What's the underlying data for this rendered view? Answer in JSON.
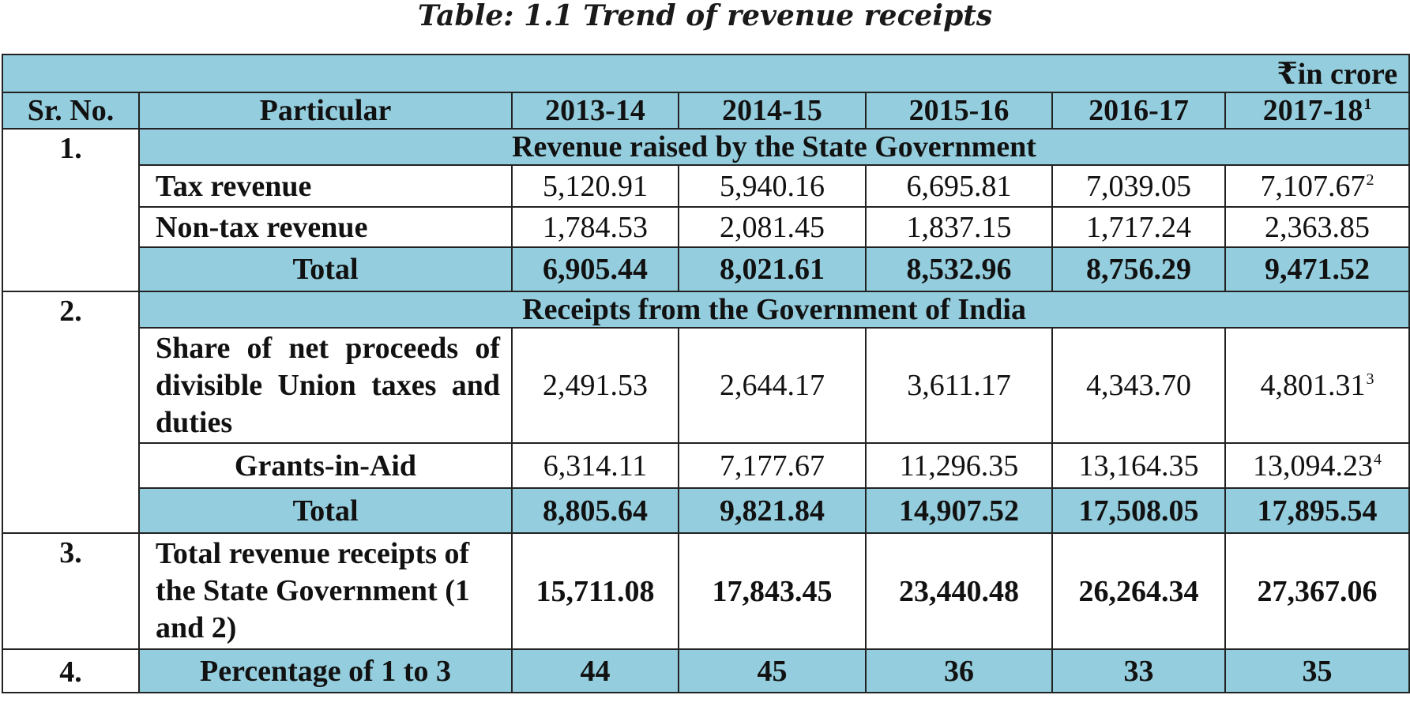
{
  "title": "Table: 1.1 Trend of revenue receipts",
  "unit": "₹in crore",
  "header": {
    "sr_no": "Sr. No.",
    "particular": "Particular",
    "years": [
      "2013-14",
      "2014-15",
      "2015-16",
      "2016-17",
      "2017-18"
    ],
    "last_year_footnote": "1"
  },
  "sections": [
    {
      "sr": "1.",
      "heading": "Revenue raised by the State Government",
      "rows": [
        {
          "label": "Tax revenue",
          "values": [
            "5,120.91",
            "5,940.16",
            "6,695.81",
            "7,039.05",
            "7,107.67"
          ],
          "footnote": "2"
        },
        {
          "label": "Non-tax revenue",
          "values": [
            "1,784.53",
            "2,081.45",
            "1,837.15",
            "1,717.24",
            "2,363.85"
          ],
          "footnote": ""
        }
      ],
      "total": {
        "label": "Total",
        "values": [
          "6,905.44",
          "8,021.61",
          "8,532.96",
          "8,756.29",
          "9,471.52"
        ]
      }
    },
    {
      "sr": "2.",
      "heading": "Receipts from the Government of India",
      "rows": [
        {
          "label": "Share of net proceeds of divisible Union taxes and duties",
          "values": [
            "2,491.53",
            "2,644.17",
            "3,611.17",
            "4,343.70",
            "4,801.31"
          ],
          "footnote": "3"
        },
        {
          "label": "Grants-in-Aid",
          "values": [
            "6,314.11",
            "7,177.67",
            "11,296.35",
            "13,164.35",
            "13,094.23"
          ],
          "footnote": "4"
        }
      ],
      "total": {
        "label": "Total",
        "values": [
          "8,805.64",
          "9,821.84",
          "14,907.52",
          "17,508.05",
          "17,895.54"
        ]
      }
    },
    {
      "sr": "3.",
      "label": "Total revenue receipts of the State Government (1 and 2)",
      "values": [
        "15,711.08",
        "17,843.45",
        "23,440.48",
        "26,264.34",
        "27,367.06"
      ]
    },
    {
      "sr": "4.",
      "label": "Percentage of 1 to 3",
      "values": [
        "44",
        "45",
        "36",
        "33",
        "35"
      ]
    }
  ]
}
